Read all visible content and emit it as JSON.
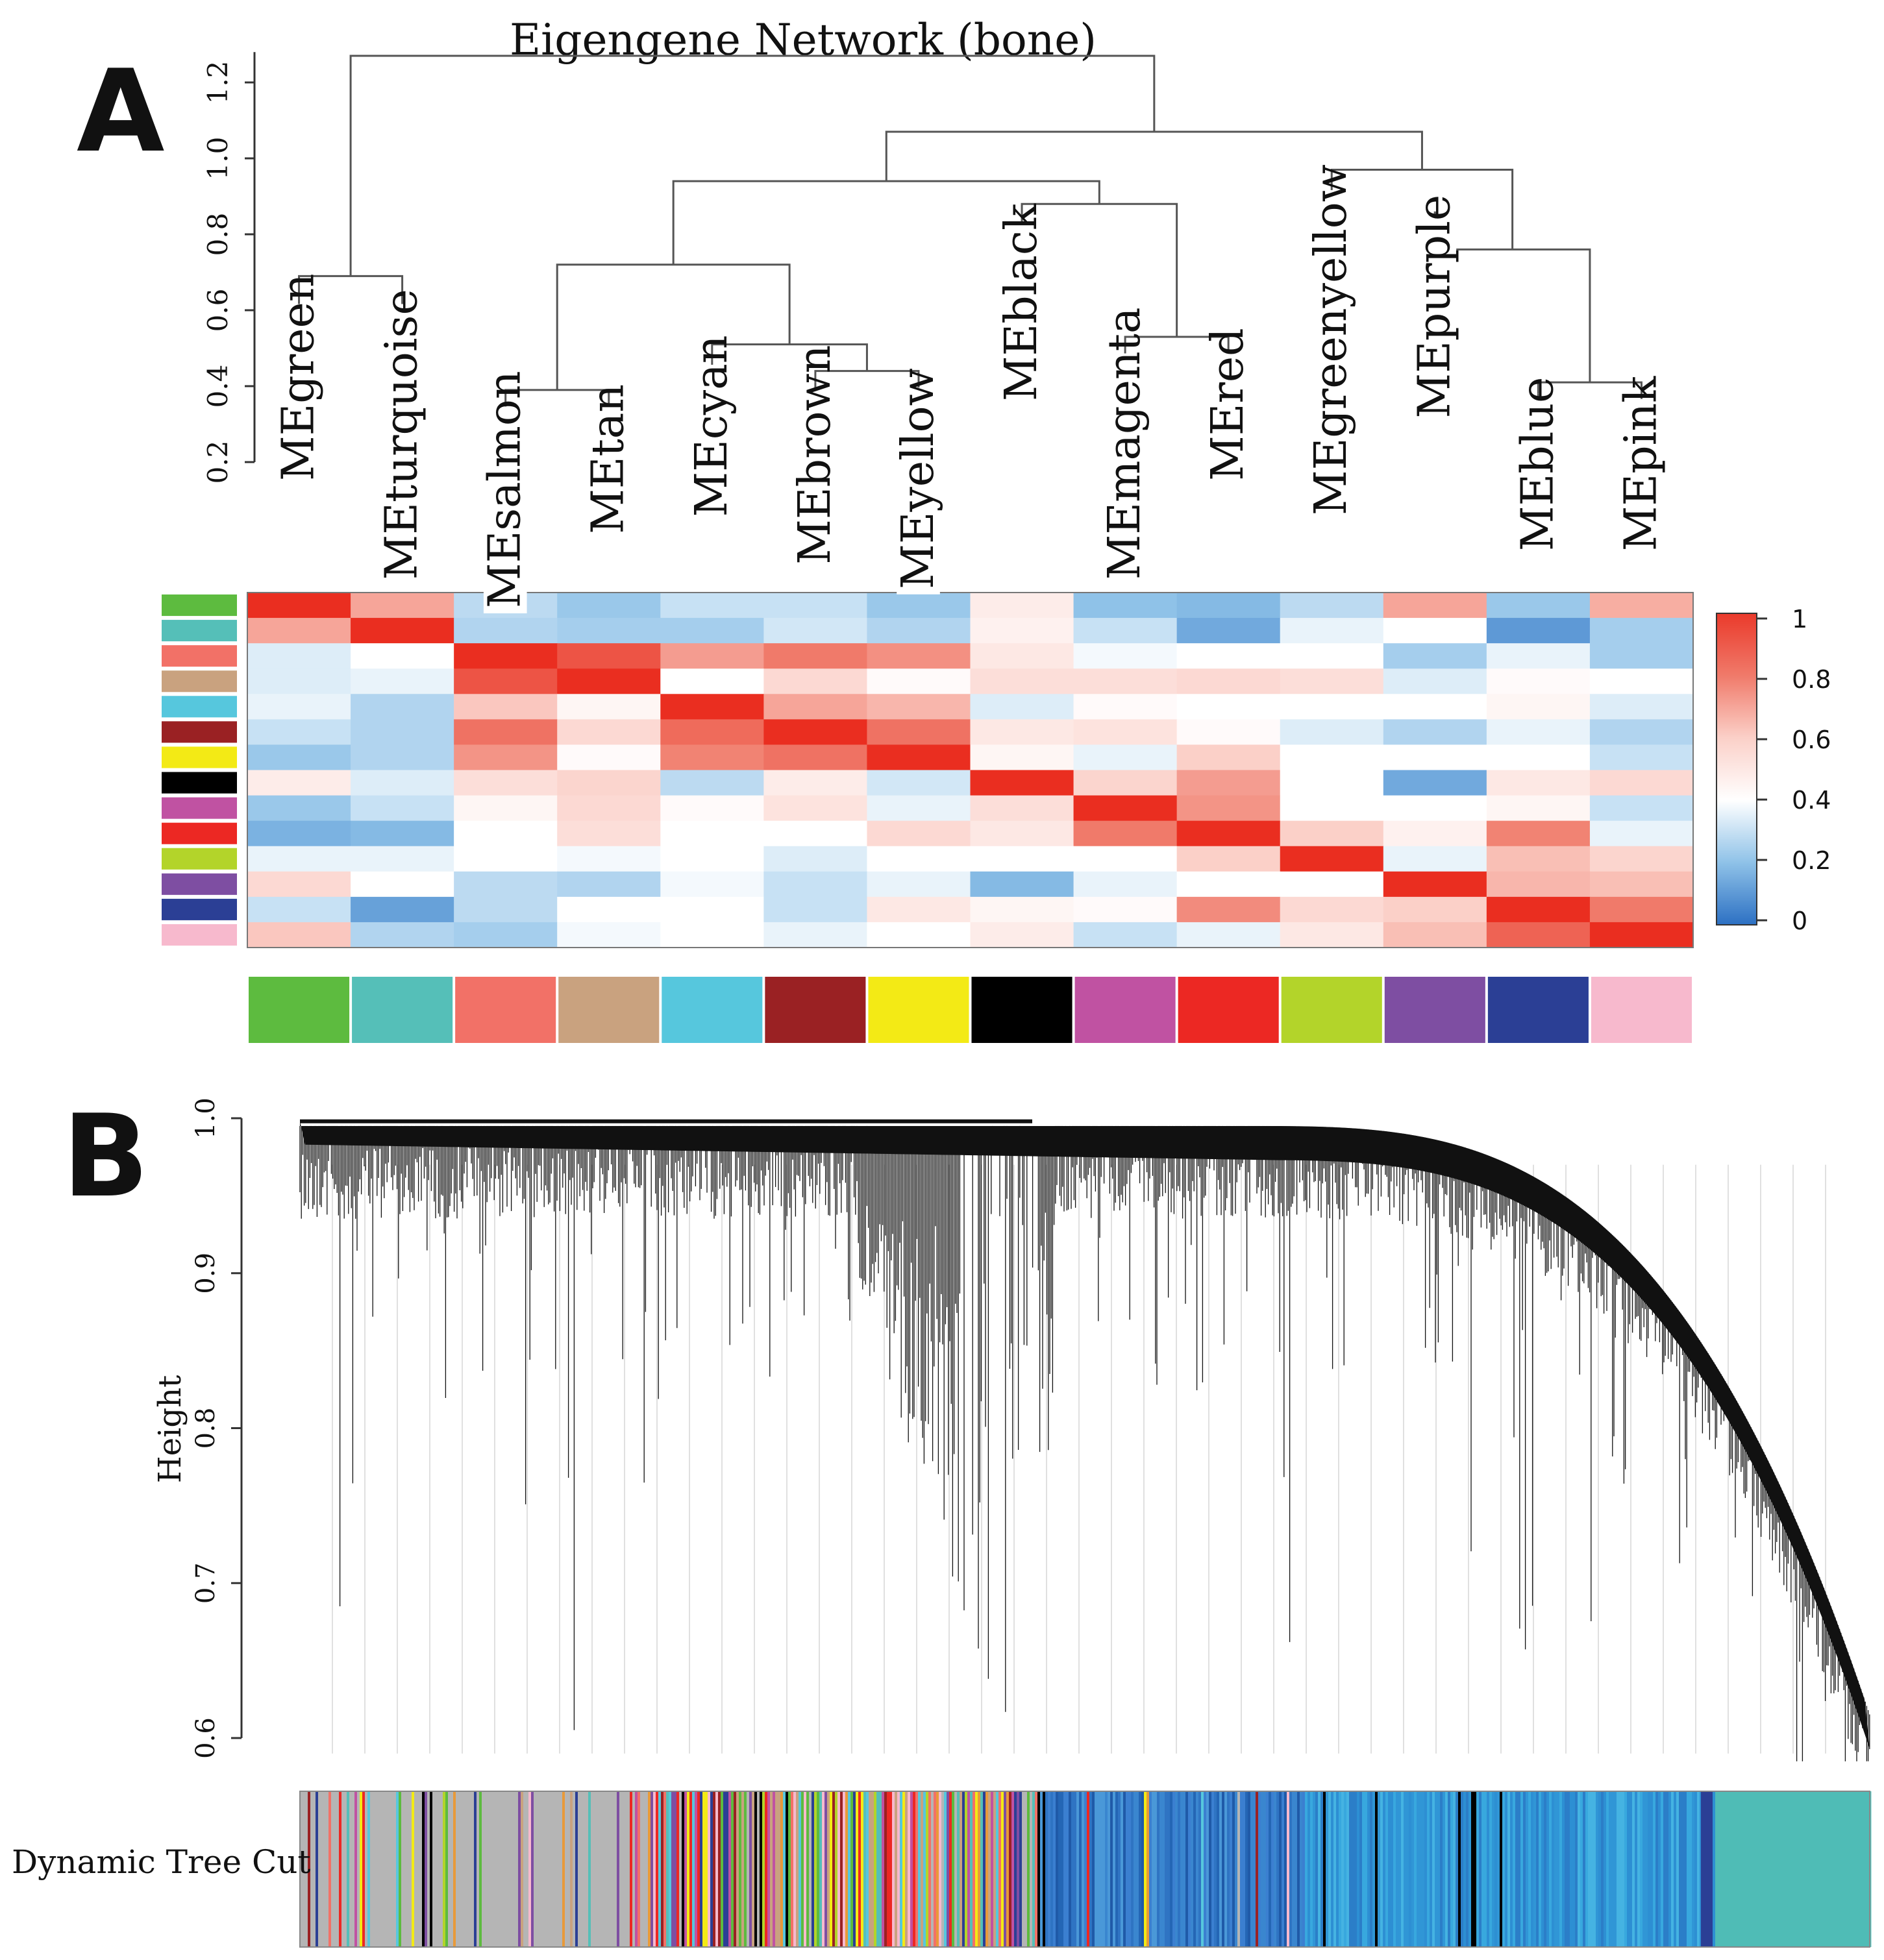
{
  "panel_a": {
    "label": "A",
    "title": "Eigengene Network (bone)",
    "y_ticks": [
      "0.2",
      "0.4",
      "0.6",
      "0.8",
      "1.0",
      "1.2"
    ],
    "legend_ticks": [
      "1",
      "0.8",
      "0.6",
      "0.4",
      "0.2",
      "0"
    ]
  },
  "panel_b": {
    "label": "B",
    "ylabel": "Height",
    "y_ticks": [
      "1.0",
      "0.9",
      "0.8",
      "0.7",
      "0.6"
    ],
    "color_bar_label": "Dynamic Tree Cut"
  },
  "colors": {
    "green": "#5dbb3f",
    "turquoise": "#55bfb8",
    "salmon": "#f27167",
    "tan": "#c9a27f",
    "cyan": "#56c7dd",
    "brown": "#9a2123",
    "yellow": "#f3ea15",
    "black": "#000000",
    "magenta": "#c052a2",
    "red": "#ec2823",
    "greenyellow": "#b3d42a",
    "purple": "#7e4ea2",
    "blue": "#2b3f95",
    "pink": "#f7b9cd",
    "grey": "#b5b5b5"
  },
  "chart_data": [
    {
      "type": "dendrogram+heatmap",
      "title": "Eigengene Network (bone)",
      "ylabel": "",
      "ylim": [
        0.2,
        1.3
      ],
      "leaves": [
        "MEgreen",
        "MEturquoise",
        "MEsalmon",
        "MEtan",
        "MEcyan",
        "MEbrown",
        "MEyellow",
        "MEblack",
        "MEmagenta",
        "MEred",
        "MEgreenyellow",
        "MEpurple",
        "MEblue",
        "MEpink"
      ],
      "leaf_colors": [
        "green",
        "turquoise",
        "salmon",
        "tan",
        "cyan",
        "brown",
        "yellow",
        "black",
        "magenta",
        "red",
        "greenyellow",
        "purple",
        "blue",
        "pink"
      ],
      "merges": [
        {
          "a": "L0",
          "b": "L1",
          "h": 0.69
        },
        {
          "a": "L2",
          "b": "L3",
          "h": 0.39
        },
        {
          "a": "L5",
          "b": "L6",
          "h": 0.44
        },
        {
          "a": "L4",
          "b": "M2",
          "h": 0.51
        },
        {
          "a": "M3",
          "b": "M1",
          "h": 0.72
        },
        {
          "a": "L8",
          "b": "L9",
          "h": 0.53
        },
        {
          "a": "L7",
          "b": "M5",
          "h": 0.88
        },
        {
          "a": "M4",
          "b": "M6",
          "h": 0.94
        },
        {
          "a": "L12",
          "b": "L13",
          "h": 0.41
        },
        {
          "a": "L11",
          "b": "M8",
          "h": 0.76
        },
        {
          "a": "L10",
          "b": "M9",
          "h": 0.97
        },
        {
          "a": "M7",
          "b": "M10",
          "h": 1.07
        },
        {
          "a": "L0+L1",
          "b": "rest",
          "h": 1.27
        }
      ],
      "heatmap": {
        "colorbar_range": [
          0,
          1
        ],
        "matrix": [
          [
            1.0,
            0.7,
            0.28,
            0.22,
            0.3,
            0.3,
            0.22,
            0.48,
            0.2,
            0.18,
            0.28,
            0.7,
            0.22,
            0.68
          ],
          [
            0.7,
            1.0,
            0.26,
            0.24,
            0.24,
            0.32,
            0.26,
            0.46,
            0.3,
            0.14,
            0.36,
            0.4,
            0.1,
            0.24
          ],
          [
            0.34,
            0.4,
            1.0,
            0.9,
            0.72,
            0.8,
            0.75,
            0.5,
            0.38,
            0.4,
            0.4,
            0.24,
            0.36,
            0.24
          ],
          [
            0.34,
            0.36,
            0.9,
            1.0,
            0.4,
            0.56,
            0.42,
            0.54,
            0.54,
            0.56,
            0.54,
            0.34,
            0.42,
            0.4
          ],
          [
            0.36,
            0.26,
            0.62,
            0.44,
            1.0,
            0.7,
            0.66,
            0.34,
            0.42,
            0.4,
            0.4,
            0.4,
            0.44,
            0.34
          ],
          [
            0.3,
            0.26,
            0.82,
            0.56,
            0.84,
            1.0,
            0.82,
            0.5,
            0.52,
            0.42,
            0.34,
            0.26,
            0.36,
            0.26
          ],
          [
            0.22,
            0.26,
            0.74,
            0.42,
            0.78,
            0.82,
            1.0,
            0.44,
            0.36,
            0.6,
            0.4,
            0.4,
            0.4,
            0.3
          ],
          [
            0.48,
            0.34,
            0.54,
            0.58,
            0.28,
            0.48,
            0.32,
            1.0,
            0.58,
            0.72,
            0.4,
            0.14,
            0.5,
            0.56
          ],
          [
            0.22,
            0.3,
            0.44,
            0.56,
            0.42,
            0.52,
            0.36,
            0.54,
            1.0,
            0.74,
            0.4,
            0.4,
            0.44,
            0.3
          ],
          [
            0.16,
            0.18,
            0.4,
            0.54,
            0.4,
            0.4,
            0.56,
            0.5,
            0.8,
            1.0,
            0.6,
            0.46,
            0.78,
            0.36
          ],
          [
            0.36,
            0.36,
            0.4,
            0.38,
            0.4,
            0.34,
            0.4,
            0.4,
            0.4,
            0.6,
            1.0,
            0.36,
            0.64,
            0.58
          ],
          [
            0.56,
            0.4,
            0.28,
            0.26,
            0.38,
            0.3,
            0.36,
            0.18,
            0.36,
            0.4,
            0.4,
            1.0,
            0.66,
            0.64
          ],
          [
            0.3,
            0.12,
            0.28,
            0.4,
            0.4,
            0.3,
            0.5,
            0.44,
            0.42,
            0.76,
            0.56,
            0.6,
            1.0,
            0.8
          ],
          [
            0.62,
            0.26,
            0.24,
            0.38,
            0.4,
            0.36,
            0.4,
            0.48,
            0.3,
            0.36,
            0.5,
            0.64,
            0.86,
            1.0
          ]
        ]
      }
    },
    {
      "type": "gene-dendrogram",
      "ylabel": "Height",
      "ylim": [
        0.58,
        1.0
      ],
      "y_ticks": [
        1.0,
        0.9,
        0.8,
        0.7,
        0.6
      ],
      "module_segments": [
        {
          "module": "grey",
          "from": 0.0,
          "to": 0.22
        },
        {
          "module": "mixed",
          "from": 0.22,
          "to": 0.47
        },
        {
          "module": "blue",
          "from": 0.47,
          "to": 0.64
        },
        {
          "module": "cyan-blue",
          "from": 0.64,
          "to": 0.9
        },
        {
          "module": "turquoise",
          "from": 0.9,
          "to": 1.0
        }
      ],
      "color_bar_label": "Dynamic Tree Cut"
    }
  ]
}
